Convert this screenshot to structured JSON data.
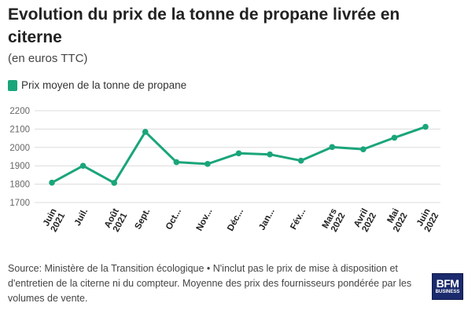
{
  "chart_data": {
    "type": "line",
    "title": "Evolution du prix de la tonne de propane livrée en citerne",
    "subtitle": "(en euros TTC)",
    "categories": [
      [
        "Juin",
        "2021"
      ],
      [
        "Juil.",
        ""
      ],
      [
        "Août",
        "2021"
      ],
      [
        "Sept.",
        ""
      ],
      [
        "Oct...",
        ""
      ],
      [
        "Nov...",
        ""
      ],
      [
        "Déc...",
        ""
      ],
      [
        "Jan...",
        ""
      ],
      [
        "Fév...",
        ""
      ],
      [
        "Mars",
        "2022"
      ],
      [
        "Avril",
        "2022"
      ],
      [
        "Mai",
        "2022"
      ],
      [
        "Juin",
        "2022"
      ]
    ],
    "series": [
      {
        "name": "Prix moyen de la tonne de propane",
        "color": "#1aa57a",
        "values": [
          1808,
          1900,
          1807,
          2085,
          1920,
          1910,
          1968,
          1962,
          1928,
          2002,
          1990,
          2053,
          2112
        ]
      }
    ],
    "ylim": [
      1700,
      2200
    ],
    "yticks": [
      1700,
      1800,
      1900,
      2000,
      2100,
      2200
    ],
    "grid": true,
    "legend_position": "top-left"
  },
  "footer": {
    "source": "Source: Ministère de la Transition écologique • N'inclut pas le prix de mise à disposition et d'entretien de la citerne ni du compteur. Moyenne des prix des fournisseurs pondérée par les volumes de vente."
  },
  "brand": {
    "logo_text": "BFM",
    "logo_subtext": "BUSINESS"
  }
}
